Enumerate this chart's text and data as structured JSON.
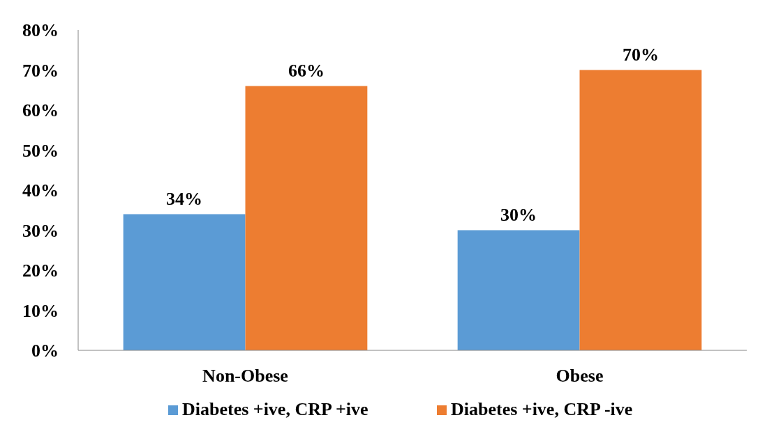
{
  "chart_data": {
    "type": "bar",
    "categories": [
      "Non-Obese",
      "Obese"
    ],
    "series": [
      {
        "name": "Diabetes +ive, CRP +ive",
        "color": "#5b9bd5",
        "values": [
          34,
          30
        ],
        "value_labels": [
          "34%",
          "30%"
        ]
      },
      {
        "name": "Diabetes +ive, CRP -ive",
        "color": "#ed7d31",
        "values": [
          66,
          70
        ],
        "value_labels": [
          "66%",
          "70%"
        ]
      }
    ],
    "ylim": [
      0,
      80
    ],
    "yticks": [
      {
        "value": 0,
        "label": "0%"
      },
      {
        "value": 10,
        "label": "10%"
      },
      {
        "value": 20,
        "label": "20%"
      },
      {
        "value": 30,
        "label": "30%"
      },
      {
        "value": 40,
        "label": "40%"
      },
      {
        "value": 50,
        "label": "50%"
      },
      {
        "value": 60,
        "label": "60%"
      },
      {
        "value": 70,
        "label": "70%"
      },
      {
        "value": 80,
        "label": "80%"
      }
    ],
    "grid": false,
    "legend": "bottom"
  }
}
